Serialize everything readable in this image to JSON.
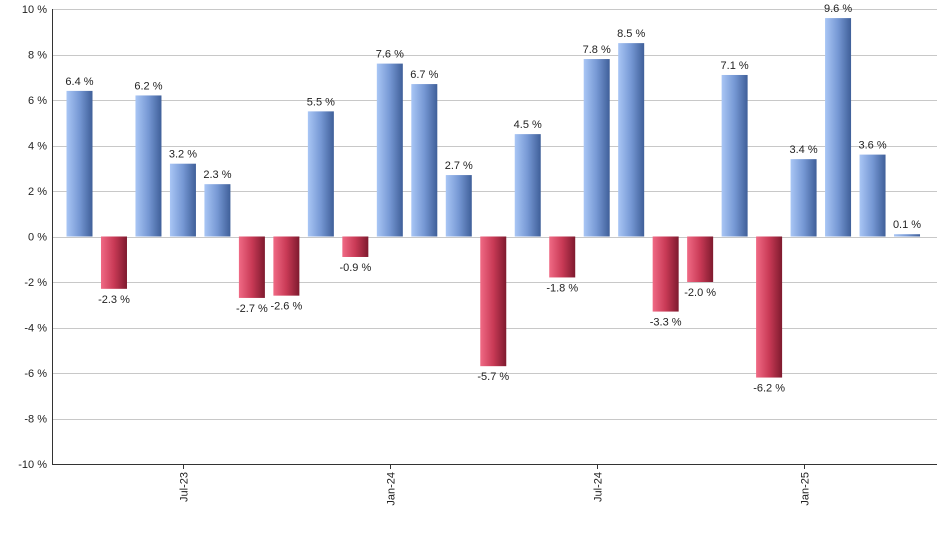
{
  "chart_data": {
    "type": "bar",
    "title": "",
    "xlabel": "",
    "ylabel": "",
    "ylim": [
      -10,
      10
    ],
    "y_ticks": [
      10,
      8,
      6,
      4,
      2,
      0,
      -2,
      -4,
      -6,
      -8,
      -10
    ],
    "y_tick_suffix": " %",
    "x_ticks": [
      {
        "label": "Jul-23",
        "index": 3
      },
      {
        "label": "Jan-24",
        "index": 9
      },
      {
        "label": "Jul-24",
        "index": 15
      },
      {
        "label": "Jan-25",
        "index": 21
      }
    ],
    "values": [
      6.4,
      -2.3,
      6.2,
      3.2,
      2.3,
      -2.7,
      -2.6,
      5.5,
      -0.9,
      7.6,
      6.7,
      2.7,
      -5.7,
      4.5,
      -1.8,
      7.8,
      8.5,
      -3.3,
      -2.0,
      7.1,
      -6.2,
      3.4,
      9.6,
      3.6,
      0.1
    ],
    "labels": [
      "6.4 %",
      "-2.3 %",
      "6.2 %",
      "3.2 %",
      "2.3 %",
      "-2.7 %",
      "-2.6 %",
      "5.5 %",
      "-0.9 %",
      "7.6 %",
      "6.7 %",
      "2.7 %",
      "-5.7 %",
      "4.5 %",
      "-1.8 %",
      "7.8 %",
      "8.5 %",
      "-3.3 %",
      "-2.0 %",
      "7.1 %",
      "-6.2 %",
      "3.4 %",
      "9.6 %",
      "3.6 %",
      "0.1 %"
    ],
    "grid": true,
    "legend": "none"
  },
  "colors": {
    "positive_light": "#a9c6f5",
    "positive_dark": "#3f5f99",
    "negative_light": "#f06a85",
    "negative_dark": "#7e1a2e",
    "grid": "#c8c8c8",
    "axis": "#333333"
  }
}
